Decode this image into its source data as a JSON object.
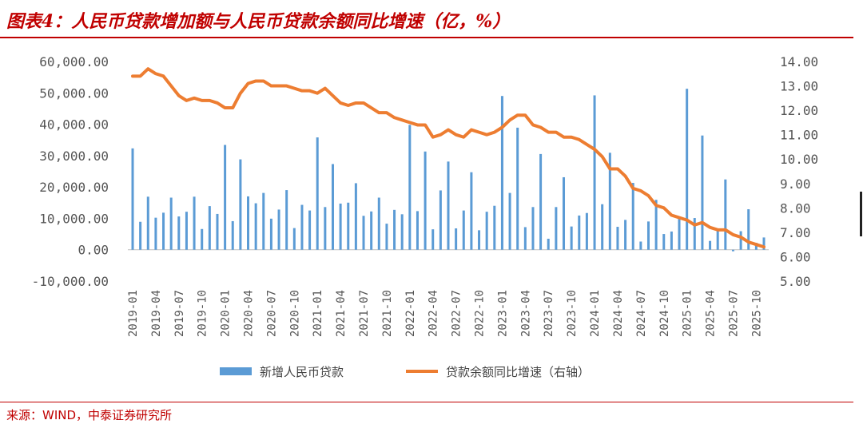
{
  "header": {
    "title": "图表4：人民币贷款增加额与人民币贷款余额同比增速（亿，%）"
  },
  "footer": {
    "source": "来源：WIND，中泰证券研究所"
  },
  "colors": {
    "bar": "#5b9bd5",
    "line": "#ed7d31",
    "accent": "#c00000"
  },
  "chart_data": {
    "type": "bar+line",
    "x": [
      "2019-01",
      "2019-02",
      "2019-03",
      "2019-04",
      "2019-05",
      "2019-06",
      "2019-07",
      "2019-08",
      "2019-09",
      "2019-10",
      "2019-11",
      "2019-12",
      "2020-01",
      "2020-02",
      "2020-03",
      "2020-04",
      "2020-05",
      "2020-06",
      "2020-07",
      "2020-08",
      "2020-09",
      "2020-10",
      "2020-11",
      "2020-12",
      "2021-01",
      "2021-02",
      "2021-03",
      "2021-04",
      "2021-05",
      "2021-06",
      "2021-07",
      "2021-08",
      "2021-09",
      "2021-10",
      "2021-11",
      "2021-12",
      "2022-01",
      "2022-02",
      "2022-03",
      "2022-04",
      "2022-05",
      "2022-06",
      "2022-07",
      "2022-08",
      "2022-09",
      "2022-10",
      "2022-11",
      "2022-12",
      "2023-01",
      "2023-02",
      "2023-03",
      "2023-04",
      "2023-05",
      "2023-06",
      "2023-07",
      "2023-08",
      "2023-09",
      "2023-10",
      "2023-11",
      "2023-12",
      "2024-01",
      "2024-02",
      "2024-03",
      "2024-04",
      "2024-05",
      "2024-06",
      "2024-07",
      "2024-08",
      "2024-09",
      "2024-10",
      "2024-11",
      "2024-12",
      "2025-01",
      "2025-02",
      "2025-03",
      "2025-04",
      "2025-05",
      "2025-06",
      "2025-07",
      "2025-08",
      "2025-09",
      "2025-10",
      "2025-11"
    ],
    "x_tick_labels": [
      "2019-01",
      "2019-04",
      "2019-07",
      "2019-10",
      "2020-01",
      "2020-04",
      "2020-07",
      "2020-10",
      "2021-01",
      "2021-04",
      "2021-07",
      "2021-10",
      "2022-01",
      "2022-04",
      "2022-07",
      "2022-10",
      "2023-01",
      "2023-04",
      "2023-07",
      "2023-10",
      "2024-01",
      "2024-04",
      "2024-07",
      "2024-10",
      "2025-01",
      "2025-04",
      "2025-07",
      "2025-10"
    ],
    "series": [
      {
        "name": "新增人民币贷款",
        "type": "bar",
        "axis": "left",
        "values": [
          32300,
          8900,
          16900,
          10200,
          11800,
          16600,
          10600,
          12100,
          16900,
          6600,
          13900,
          11400,
          33400,
          9100,
          28800,
          17000,
          14800,
          18100,
          9900,
          12800,
          19000,
          6900,
          14300,
          12500,
          35800,
          13600,
          27300,
          14700,
          15000,
          21200,
          10800,
          12200,
          16600,
          8300,
          12700,
          11300,
          39800,
          12300,
          31300,
          6500,
          18900,
          28100,
          6800,
          12500,
          24700,
          6200,
          12100,
          14000,
          49000,
          18100,
          38900,
          7200,
          13600,
          30500,
          3500,
          13600,
          23100,
          7400,
          10900,
          11700,
          49200,
          14500,
          30900,
          7300,
          9500,
          21300,
          2600,
          9000,
          15900,
          5000,
          5800,
          9900,
          51300,
          10100,
          36400,
          2800,
          6200,
          22400,
          -500,
          5900,
          12900,
          2200,
          3900
        ]
      },
      {
        "name": "贷款余额同比增速（右轴）",
        "type": "line",
        "axis": "right",
        "values": [
          13.4,
          13.4,
          13.7,
          13.5,
          13.4,
          13.0,
          12.6,
          12.4,
          12.5,
          12.4,
          12.4,
          12.3,
          12.1,
          12.1,
          12.7,
          13.1,
          13.2,
          13.2,
          13.0,
          13.0,
          13.0,
          12.9,
          12.8,
          12.8,
          12.7,
          12.9,
          12.6,
          12.3,
          12.2,
          12.3,
          12.3,
          12.1,
          11.9,
          11.9,
          11.7,
          11.6,
          11.5,
          11.4,
          11.4,
          10.9,
          11.0,
          11.2,
          11.0,
          10.9,
          11.2,
          11.1,
          11.0,
          11.1,
          11.3,
          11.6,
          11.8,
          11.8,
          11.4,
          11.3,
          11.1,
          11.1,
          10.9,
          10.9,
          10.8,
          10.6,
          10.4,
          10.1,
          9.6,
          9.6,
          9.3,
          8.8,
          8.7,
          8.5,
          8.1,
          8.0,
          7.7,
          7.6,
          7.5,
          7.3,
          7.4,
          7.2,
          7.1,
          7.1,
          6.9,
          6.8,
          6.6,
          6.5,
          6.4
        ]
      }
    ],
    "y_left": {
      "ticks": [
        "60,000.00",
        "50,000.00",
        "40,000.00",
        "30,000.00",
        "20,000.00",
        "10,000.00",
        "0.00",
        "-10,000.00"
      ],
      "ylim": [
        -10000,
        60000
      ]
    },
    "y_right": {
      "ticks": [
        "14.00",
        "13.00",
        "12.00",
        "11.00",
        "10.00",
        "9.00",
        "8.00",
        "7.00",
        "6.00",
        "5.00"
      ],
      "ylim": [
        5,
        14
      ]
    },
    "legend": {
      "position": "bottom",
      "bar_label": "新增人民币贷款",
      "line_label": "贷款余额同比增速（右轴）"
    },
    "grid": false
  }
}
